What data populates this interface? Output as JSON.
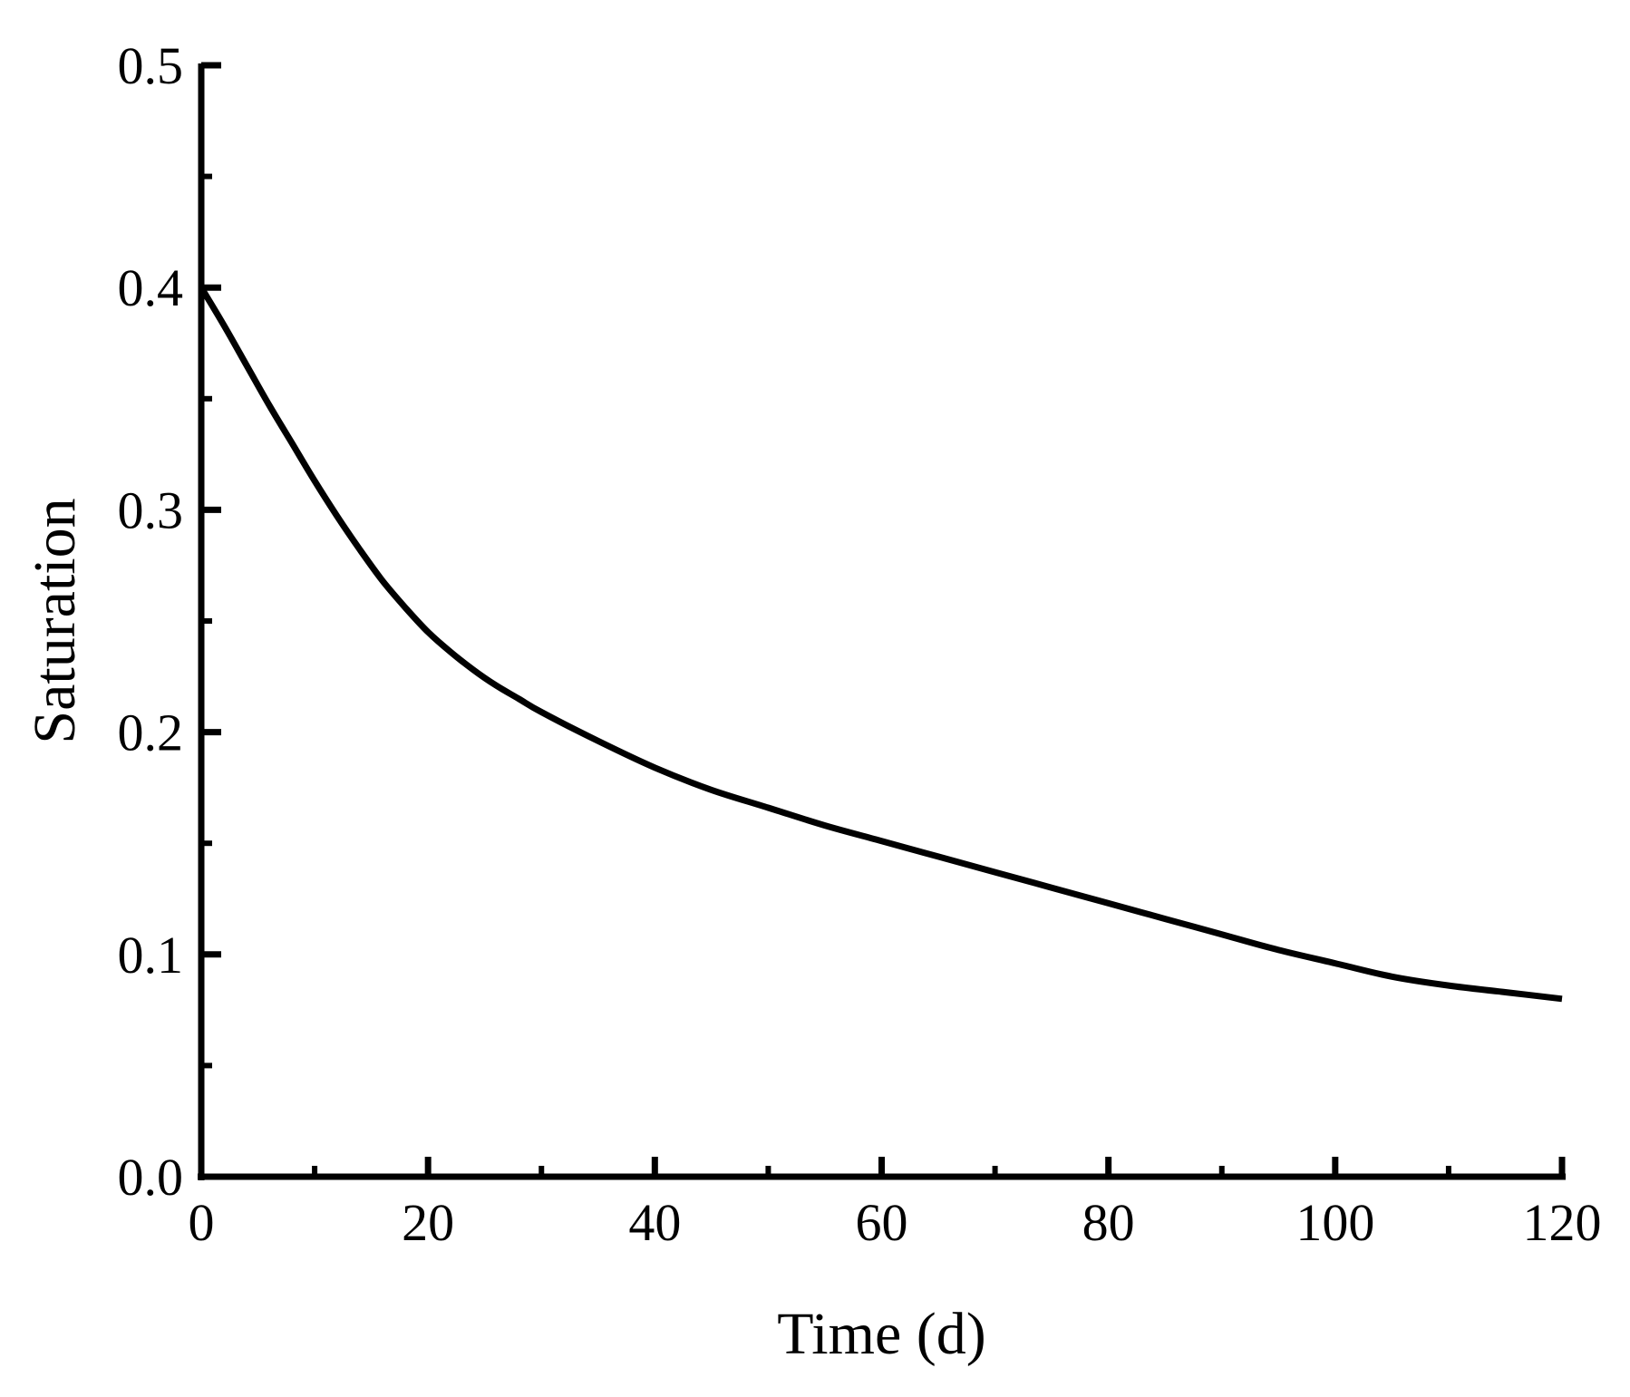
{
  "chart_data": {
    "type": "line",
    "title": "",
    "xlabel": "Time (d)",
    "ylabel": "Saturation",
    "xlim": [
      0,
      120
    ],
    "ylim": [
      0,
      0.5
    ],
    "x_ticks": [
      0,
      20,
      40,
      60,
      80,
      100,
      120
    ],
    "x_tick_labels": [
      "0",
      "20",
      "40",
      "60",
      "80",
      "100",
      "120"
    ],
    "x_minor_ticks": [
      10,
      30,
      50,
      70,
      90,
      110
    ],
    "y_ticks": [
      0,
      0.1,
      0.2,
      0.3,
      0.4,
      0.5
    ],
    "y_tick_labels": [
      "0.0",
      "0.1",
      "0.2",
      "0.3",
      "0.4",
      "0.5"
    ],
    "y_minor_ticks": [
      0.05,
      0.15,
      0.25,
      0.35,
      0.45
    ],
    "grid": false,
    "legend": "none",
    "line_color": "#000000",
    "series": [
      {
        "x": [
          0,
          2,
          4,
          6,
          8,
          10,
          12,
          14,
          16,
          18,
          20,
          22,
          24,
          26,
          28,
          30,
          35,
          40,
          45,
          50,
          55,
          60,
          65,
          70,
          75,
          80,
          85,
          90,
          95,
          100,
          105,
          110,
          115,
          120
        ],
        "values": [
          0.4,
          0.383,
          0.365,
          0.347,
          0.33,
          0.313,
          0.297,
          0.282,
          0.268,
          0.256,
          0.245,
          0.236,
          0.228,
          0.221,
          0.215,
          0.209,
          0.196,
          0.184,
          0.174,
          0.166,
          0.158,
          0.151,
          0.144,
          0.137,
          0.13,
          0.123,
          0.116,
          0.109,
          0.102,
          0.096,
          0.09,
          0.086,
          0.083,
          0.08
        ]
      }
    ]
  }
}
